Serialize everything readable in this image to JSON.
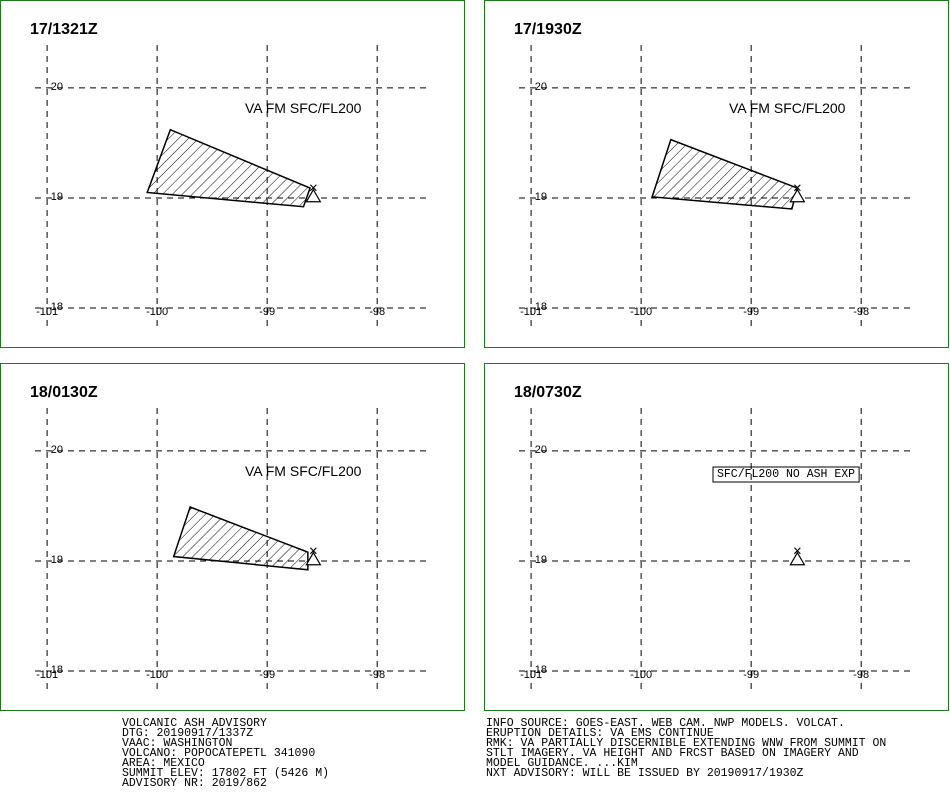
{
  "map": {
    "xlim": [
      -101.11,
      -97.52
    ],
    "ylim": [
      17.8,
      20.39
    ],
    "xticks": [
      -101,
      -100,
      -99,
      -98
    ],
    "yticks": [
      18,
      19,
      20
    ],
    "volcano": {
      "lon": -98.58,
      "lat": 19.02
    },
    "panels": [
      {
        "time": "17/1321Z",
        "label": "VA FM SFC/FL200",
        "lon": [
          -99.88,
          -100.09,
          -98.67,
          -98.61
        ],
        "lat": [
          19.62,
          19.05,
          18.92,
          19.09
        ]
      },
      {
        "time": "17/1930Z",
        "label": "VA FM SFC/FL200",
        "lon": [
          -99.73,
          -99.9,
          -98.63,
          -98.58
        ],
        "lat": [
          19.53,
          19.01,
          18.9,
          19.09
        ]
      },
      {
        "time": "18/0130Z",
        "label": "VA FM SFC/FL200",
        "lon": [
          -99.7,
          -99.85,
          -98.63,
          -98.63
        ],
        "lat": [
          19.49,
          19.04,
          18.92,
          19.08
        ]
      },
      {
        "time": "18/0730Z",
        "label": "SFC/FL200 NO ASH EXP",
        "lon": [],
        "lat": []
      }
    ]
  },
  "footer": {
    "left": [
      "VOLCANIC ASH ADVISORY",
      "DTG: 20190917/1337Z",
      "VAAC: WASHINGTON",
      "VOLCANO: POPOCATEPETL 341090",
      "AREA: MEXICO",
      "SUMMIT ELEV: 17802 FT (5426 M)",
      "ADVISORY NR: 2019/862"
    ],
    "right": [
      "INFO SOURCE: GOES-EAST. WEB CAM. NWP MODELS. VOLCAT.",
      "ERUPTION DETAILS: VA EMS CONTINUE",
      "RMK: VA PARTIALLY DISCERNIBLE EXTENDING WNW FROM SUMMIT ON",
      "STLT IMAGERY. VA HEIGHT AND FRCST BASED ON IMAGERY AND",
      "MODEL GUIDANCE. ...KIM",
      "NXT ADVISORY: WILL BE ISSUED BY 20190917/1930Z"
    ]
  }
}
